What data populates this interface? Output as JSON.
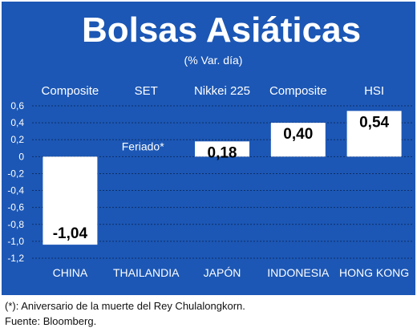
{
  "colors": {
    "panel": "#1c57b5",
    "bar": "#ffffff",
    "text_light": "#ffffff",
    "text_dark": "#000000",
    "grid": "#0d2e66"
  },
  "chart_data": {
    "type": "bar",
    "title": "Bolsas Asiáticas",
    "subtitle": "(% Var. día)",
    "index_names": [
      "Composite",
      "SET",
      "Nikkei 225",
      "Composite",
      "HSI"
    ],
    "categories": [
      "CHINA",
      "THAILANDIA",
      "JAPÓN",
      "INDONESIA",
      "HONG KONG"
    ],
    "values": [
      -1.04,
      null,
      0.18,
      0.4,
      0.54
    ],
    "value_labels": [
      "-1,04",
      "Feriado*",
      "0,18",
      "0,40",
      "0,54"
    ],
    "ylim": [
      -1.2,
      0.6
    ],
    "yticks": [
      0.6,
      0.4,
      0.2,
      0,
      -0.2,
      -0.4,
      -0.6,
      -0.8,
      -1.0,
      -1.2
    ],
    "ytick_labels": [
      "0,6",
      "0,4",
      "0,2",
      "0",
      "-0,2",
      "-0,4",
      "-0,6",
      "-0,8",
      "-1,0",
      "-1,2"
    ],
    "grid": true,
    "legend": "none"
  },
  "footnotes": {
    "note": "(*): Aniversario de la muerte del Rey Chulalongkorn.",
    "source": "Fuente: Bloomberg."
  }
}
